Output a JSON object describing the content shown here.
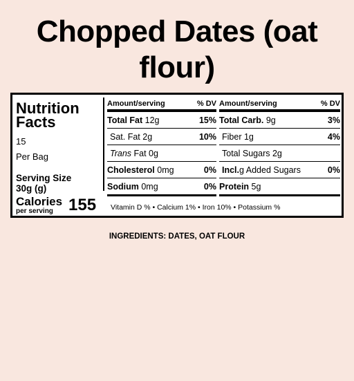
{
  "title": "Chopped Dates (oat flour)",
  "label": {
    "heading": "Nutrition Facts",
    "servings_count": "15",
    "servings_unit": "Per Bag",
    "serving_size_label": "Serving Size",
    "serving_size_value": "30g (g)",
    "calories_label": "Calories",
    "calories_sub": "per serving",
    "calories_value": "155",
    "col_header_amount": "Amount/serving",
    "col_header_dv": "% DV",
    "left_rows": [
      {
        "name": "Total Fat",
        "amount": "12g",
        "dv": "15%",
        "bold": true
      },
      {
        "name": "Sat. Fat",
        "amount": "2g",
        "dv": "10%",
        "bold": false
      },
      {
        "name": "Trans",
        "amount": "Fat 0g",
        "dv": "",
        "bold": false
      },
      {
        "name": "Cholesterol",
        "amount": "0mg",
        "dv": "0%",
        "bold": true
      },
      {
        "name": "Sodium",
        "amount": "0mg",
        "dv": "0%",
        "bold": true
      }
    ],
    "right_rows": [
      {
        "name": "Total Carb.",
        "amount": "9g",
        "dv": "3%",
        "bold": true
      },
      {
        "name": "Fiber",
        "amount": "1g",
        "dv": "4%",
        "bold": false
      },
      {
        "name": "Total Sugars",
        "amount": "2g",
        "dv": "",
        "bold": false
      },
      {
        "name": "Incl.",
        "amount": "g Added Sugars",
        "dv": "0%",
        "bold": true
      },
      {
        "name": "Protein",
        "amount": "5g",
        "dv": "",
        "bold": true
      }
    ],
    "vitamins": "Vitamin D % • Calcium 1% • Iron 10% • Potassium %"
  },
  "ingredients": "INGREDIENTS: DATES, OAT FLOUR"
}
